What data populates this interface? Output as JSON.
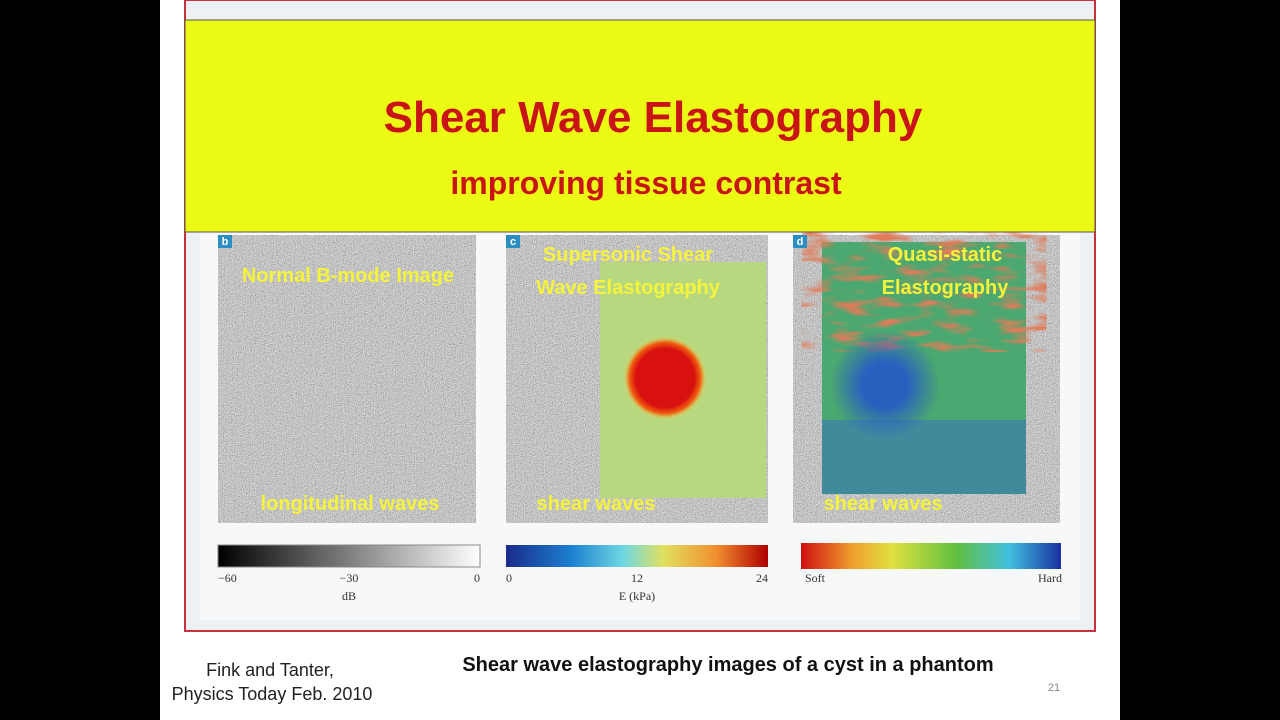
{
  "slide": {
    "title": "Shear Wave Elastography",
    "subtitle": "improving tissue contrast",
    "panels": [
      {
        "letter": "b",
        "caption_top": [
          "Normal B-mode Image"
        ],
        "caption_bottom": "longitudinal waves",
        "scale_ticks": [
          "−60",
          "−30",
          "0"
        ],
        "scale_unit": "dB"
      },
      {
        "letter": "c",
        "caption_top": [
          "Supersonic Shear",
          "Wave Elastography"
        ],
        "caption_bottom": "shear waves",
        "scale_ticks": [
          "0",
          "12",
          "24"
        ],
        "scale_unit": "E (kPa)"
      },
      {
        "letter": "d",
        "caption_top": [
          "Quasi-static",
          "Elastography"
        ],
        "caption_bottom": "shear waves",
        "scale_ticks": [
          "Soft",
          "Hard"
        ]
      }
    ],
    "citation": [
      "Fink and Tanter,",
      "Physics Today Feb. 2010"
    ],
    "caption": "Shear wave elastography  images of a cyst in a phantom",
    "page_number": "21"
  }
}
